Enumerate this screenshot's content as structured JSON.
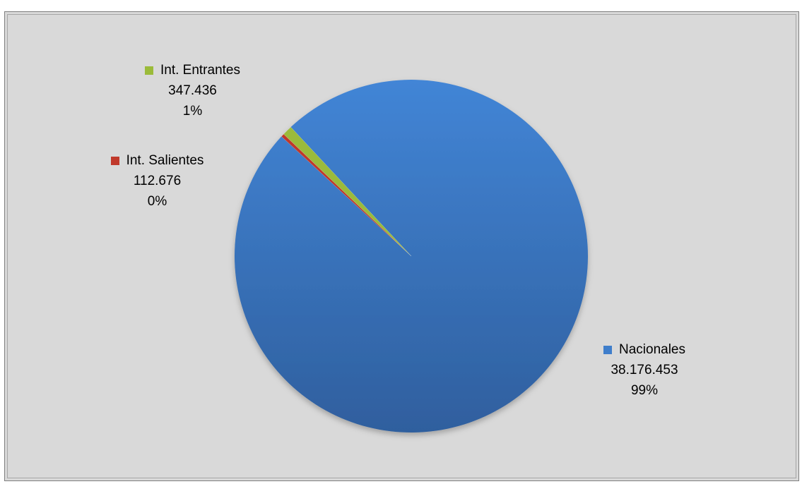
{
  "chart_data": {
    "type": "pie",
    "title": "",
    "slices": [
      {
        "name": "Nacionales",
        "value": 38176453,
        "value_label": "38.176.453",
        "percent_label": "99%",
        "color": "#3f7ecb"
      },
      {
        "name": "Int. Salientes",
        "value": 112676,
        "value_label": "112.676",
        "percent_label": "0%",
        "color": "#c0392b"
      },
      {
        "name": "Int. Entrantes",
        "value": 347436,
        "value_label": "347.436",
        "percent_label": "1%",
        "color": "#9bbb3a"
      }
    ],
    "start_angle_deg": -43,
    "direction": "clockwise",
    "legend": "none",
    "data_labels": "category, value, percent"
  }
}
